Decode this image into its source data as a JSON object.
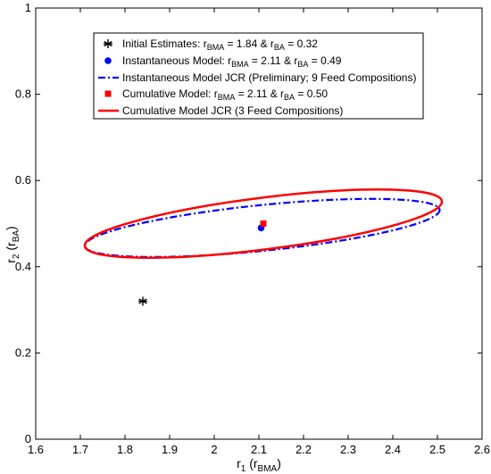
{
  "chart_data": {
    "type": "scatter",
    "xlabel": {
      "main": "r",
      "sub1": "1",
      "paren_open": " (r",
      "sub2": "BMA",
      "paren_close": ")"
    },
    "ylabel": {
      "main": "r",
      "sub1": "2",
      "paren_open": " (r",
      "sub2": "BA",
      "paren_close": ")"
    },
    "xlim": [
      1.6,
      2.6
    ],
    "ylim": [
      0,
      1
    ],
    "xticks": [
      "1.6",
      "1.7",
      "1.8",
      "1.9",
      "2",
      "2.1",
      "2.2",
      "2.3",
      "2.4",
      "2.5",
      "2.6"
    ],
    "yticks": [
      "0",
      "0.2",
      "0.4",
      "0.6",
      "0.8",
      "1"
    ],
    "legend_position": "top-center",
    "points": [
      {
        "id": "initial",
        "x": 1.84,
        "y": 0.32,
        "marker": "asterisk",
        "color": "#000000"
      },
      {
        "id": "instantaneous",
        "x": 2.105,
        "y": 0.49,
        "marker": "circle",
        "color": "#0000ff"
      },
      {
        "id": "cumulative",
        "x": 2.11,
        "y": 0.5,
        "marker": "square",
        "color": "#ff0000"
      }
    ],
    "ellipses": [
      {
        "id": "instantaneous-jcr",
        "color": "#0000ff",
        "dash": "dashdot",
        "cx": 2.105,
        "cy": 0.49,
        "x_left": 1.71,
        "y_left": 0.448,
        "x_right": 2.505,
        "y_right": 0.532,
        "half_minor": 0.053
      },
      {
        "id": "cumulative-jcr",
        "color": "#ff0000",
        "dash": "solid",
        "cx": 2.11,
        "cy": 0.5,
        "x_left": 1.71,
        "y_left": 0.448,
        "x_right": 2.51,
        "y_right": 0.552,
        "half_minor": 0.06
      }
    ],
    "legend": [
      {
        "marker": "asterisk",
        "color": "#000000",
        "parts": [
          {
            "t": "Initial Estimates: r"
          },
          {
            "t": "BMA",
            "sub": true
          },
          {
            "t": " = 1.84 & r"
          },
          {
            "t": "BA",
            "sub": true
          },
          {
            "t": " = 0.32"
          }
        ]
      },
      {
        "marker": "circle",
        "color": "#0000ff",
        "parts": [
          {
            "t": "Instantaneous Model: r"
          },
          {
            "t": "BMA",
            "sub": true
          },
          {
            "t": " = 2.11 & r"
          },
          {
            "t": "BA",
            "sub": true
          },
          {
            "t": " = 0.49"
          }
        ]
      },
      {
        "marker": "dashdot-line",
        "color": "#0000ff",
        "parts": [
          {
            "t": "Instantaneous Model JCR (Preliminary; 9 Feed Compositions)"
          }
        ]
      },
      {
        "marker": "square",
        "color": "#ff0000",
        "parts": [
          {
            "t": "Cumulative Model: r"
          },
          {
            "t": "BMA",
            "sub": true
          },
          {
            "t": " = 2.11 & r"
          },
          {
            "t": "BA",
            "sub": true
          },
          {
            "t": " = 0.50"
          }
        ]
      },
      {
        "marker": "solid-line",
        "color": "#ff0000",
        "parts": [
          {
            "t": "Cumulative Model JCR (3 Feed Compositions)"
          }
        ]
      }
    ]
  }
}
